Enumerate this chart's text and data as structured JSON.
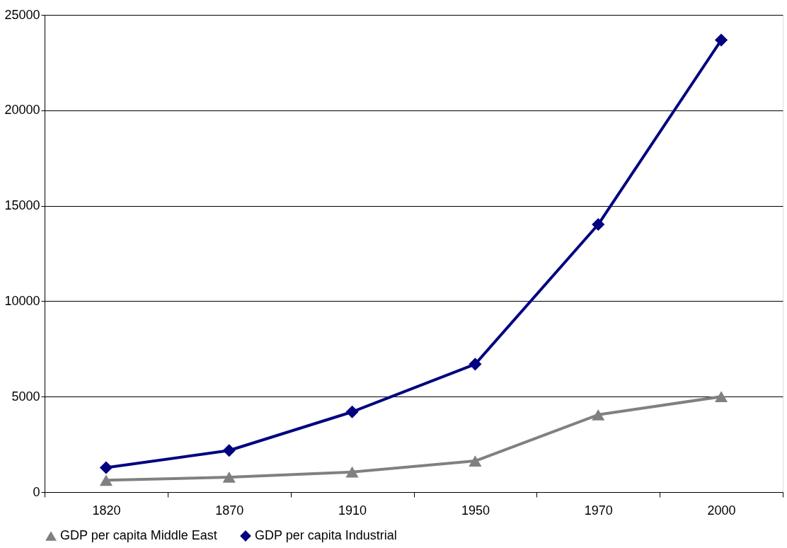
{
  "chart_data": {
    "type": "line",
    "categories": [
      "1820",
      "1870",
      "1910",
      "1950",
      "1970",
      "2000"
    ],
    "series": [
      {
        "name": "GDP per capita Middle East",
        "color": "#808080",
        "marker": "triangle",
        "values": [
          620,
          780,
          1050,
          1630,
          4050,
          5000
        ]
      },
      {
        "name": "GDP per capita Industrial",
        "color": "#000080",
        "marker": "diamond",
        "values": [
          1280,
          2180,
          4200,
          6700,
          14020,
          23680
        ]
      }
    ],
    "ylim": [
      0,
      25000
    ],
    "yticks": [
      0,
      5000,
      10000,
      15000,
      20000,
      25000
    ],
    "grid": "y",
    "legend": "bottom"
  }
}
